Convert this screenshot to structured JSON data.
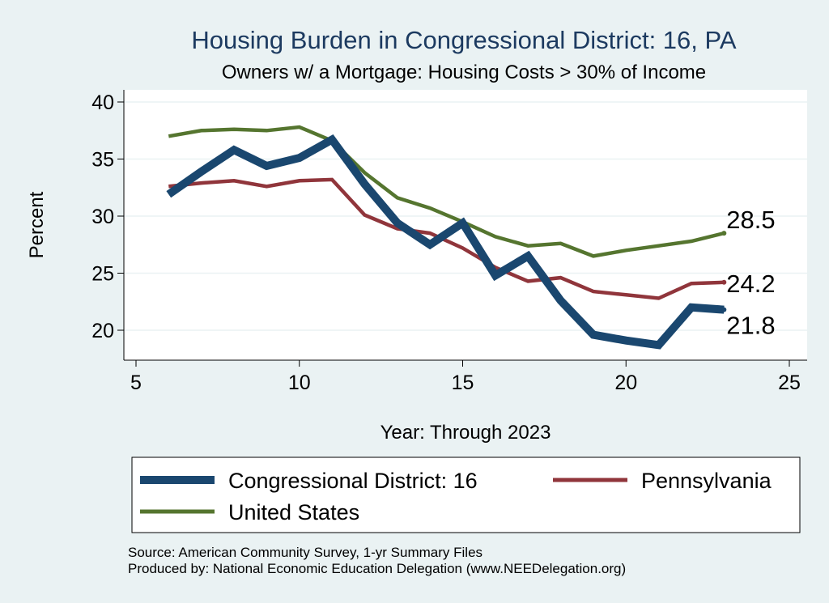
{
  "header": {
    "title": "Housing Burden in Congressional District:  16, PA",
    "subtitle": "Owners w/ a Mortgage: Housing Costs > 30% of Income"
  },
  "colors": {
    "background": "#eaf2f3",
    "plot_background": "#ffffff",
    "grid": "#eaf2f3",
    "title": "#1c3a60"
  },
  "chart_data": {
    "type": "line",
    "title": "Housing Burden in Congressional District:  16, PA",
    "subtitle": "Owners w/ a Mortgage: Housing Costs > 30% of Income",
    "xlabel": "Year: Through 2023",
    "ylabel": "Percent",
    "xlim": [
      5,
      25
    ],
    "ylim": [
      18,
      40.5
    ],
    "xticks": [
      5,
      10,
      15,
      20,
      25
    ],
    "yticks": [
      20,
      25,
      30,
      35,
      40
    ],
    "grid": true,
    "legend_position": "bottom",
    "series": [
      {
        "name": "Congressional District:  16",
        "color": "#1a476f",
        "line_width": "thick",
        "x": [
          6,
          7,
          8,
          9,
          10,
          11,
          12,
          13,
          14,
          15,
          16,
          17,
          18,
          19,
          20,
          21,
          22,
          23
        ],
        "values": [
          31.9,
          33.9,
          35.8,
          34.4,
          35.1,
          36.7,
          32.8,
          29.4,
          27.5,
          29.4,
          24.8,
          26.5,
          22.6,
          19.6,
          19.1,
          18.7,
          22.0,
          21.8
        ],
        "end_label": "21.8"
      },
      {
        "name": "Pennsylvania",
        "color": "#90353b",
        "line_width": "medium",
        "x": [
          6,
          7,
          8,
          9,
          10,
          11,
          12,
          13,
          14,
          15,
          16,
          17,
          18,
          19,
          20,
          21,
          22,
          23
        ],
        "values": [
          32.6,
          32.9,
          33.1,
          32.6,
          33.1,
          33.2,
          30.1,
          28.9,
          28.5,
          27.2,
          25.5,
          24.3,
          24.6,
          23.4,
          23.1,
          22.8,
          24.1,
          24.2
        ],
        "end_label": "24.2"
      },
      {
        "name": "United States",
        "color": "#55752f",
        "line_width": "medium",
        "x": [
          6,
          7,
          8,
          9,
          10,
          11,
          12,
          13,
          14,
          15,
          16,
          17,
          18,
          19,
          20,
          21,
          22,
          23
        ],
        "values": [
          37.0,
          37.5,
          37.6,
          37.5,
          37.8,
          36.6,
          33.8,
          31.6,
          30.7,
          29.5,
          28.2,
          27.4,
          27.6,
          26.5,
          27.0,
          27.4,
          27.8,
          28.5
        ],
        "end_label": "28.5"
      }
    ]
  },
  "legend": {
    "items": [
      {
        "label": "Congressional District:  16",
        "color": "#1a476f"
      },
      {
        "label": "Pennsylvania",
        "color": "#90353b"
      },
      {
        "label": "United States",
        "color": "#55752f"
      }
    ]
  },
  "footer": {
    "source": "Source: American Community Survey, 1-yr Summary Files",
    "produced_by": "Produced by: National Economic Education Delegation (www.NEEDelegation.org)"
  }
}
